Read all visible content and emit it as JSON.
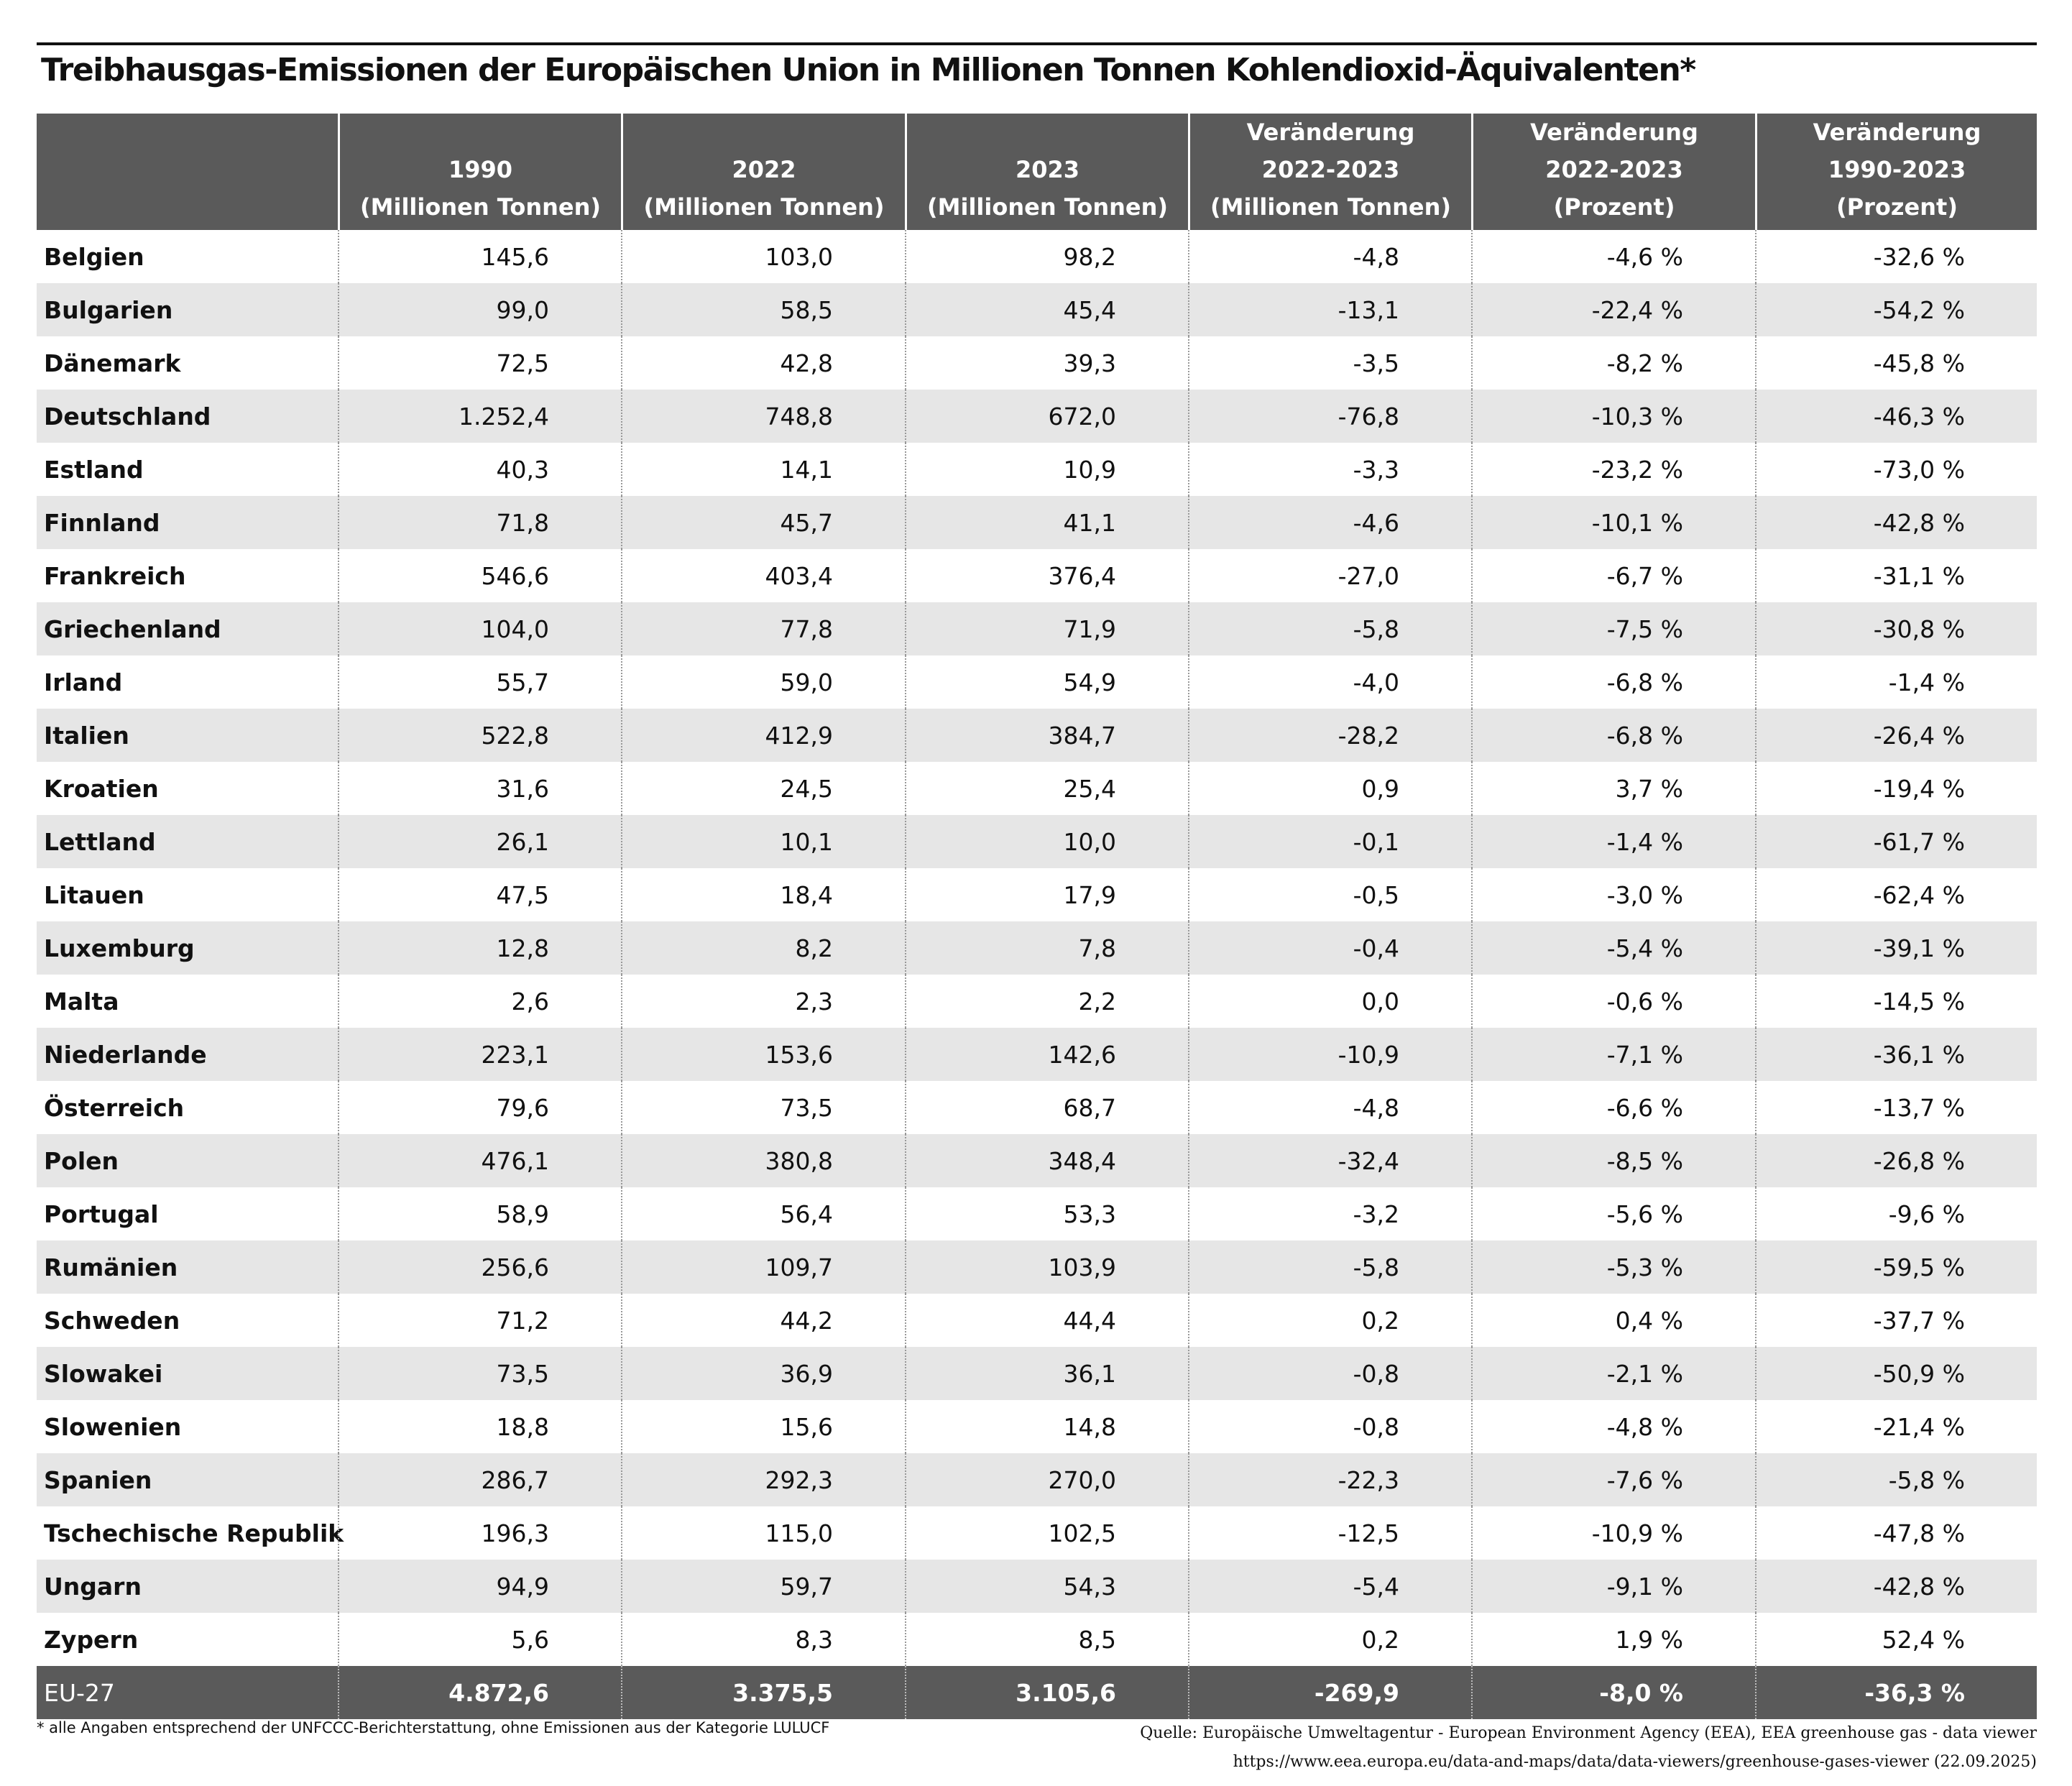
{
  "header": {
    "title": "Treibhausgas-Emissionen der Europäischen Union in Millionen Tonnen Kohlendioxid-Äquivalenten*"
  },
  "table": {
    "columns": [
      [
        "1990",
        "(Millionen Tonnen)"
      ],
      [
        "2022",
        "(Millionen Tonnen)"
      ],
      [
        "2023",
        "(Millionen Tonnen)"
      ],
      [
        "Veränderung",
        "2022-2023",
        "(Millionen Tonnen)"
      ],
      [
        "Veränderung",
        "2022-2023",
        "(Prozent)"
      ],
      [
        "Veränderung",
        "1990-2023",
        "(Prozent)"
      ]
    ],
    "rows": [
      [
        "Belgien",
        "145,6",
        "103,0",
        "98,2",
        "-4,8",
        "-4,6 %",
        "-32,6 %"
      ],
      [
        "Bulgarien",
        "99,0",
        "58,5",
        "45,4",
        "-13,1",
        "-22,4 %",
        "-54,2 %"
      ],
      [
        "Dänemark",
        "72,5",
        "42,8",
        "39,3",
        "-3,5",
        "-8,2 %",
        "-45,8 %"
      ],
      [
        "Deutschland",
        "1.252,4",
        "748,8",
        "672,0",
        "-76,8",
        "-10,3 %",
        "-46,3 %"
      ],
      [
        "Estland",
        "40,3",
        "14,1",
        "10,9",
        "-3,3",
        "-23,2 %",
        "-73,0 %"
      ],
      [
        "Finnland",
        "71,8",
        "45,7",
        "41,1",
        "-4,6",
        "-10,1 %",
        "-42,8 %"
      ],
      [
        "Frankreich",
        "546,6",
        "403,4",
        "376,4",
        "-27,0",
        "-6,7 %",
        "-31,1 %"
      ],
      [
        "Griechenland",
        "104,0",
        "77,8",
        "71,9",
        "-5,8",
        "-7,5 %",
        "-30,8 %"
      ],
      [
        "Irland",
        "55,7",
        "59,0",
        "54,9",
        "-4,0",
        "-6,8 %",
        "-1,4 %"
      ],
      [
        "Italien",
        "522,8",
        "412,9",
        "384,7",
        "-28,2",
        "-6,8 %",
        "-26,4 %"
      ],
      [
        "Kroatien",
        "31,6",
        "24,5",
        "25,4",
        "0,9",
        "3,7 %",
        "-19,4 %"
      ],
      [
        "Lettland",
        "26,1",
        "10,1",
        "10,0",
        "-0,1",
        "-1,4 %",
        "-61,7 %"
      ],
      [
        "Litauen",
        "47,5",
        "18,4",
        "17,9",
        "-0,5",
        "-3,0 %",
        "-62,4 %"
      ],
      [
        "Luxemburg",
        "12,8",
        "8,2",
        "7,8",
        "-0,4",
        "-5,4 %",
        "-39,1 %"
      ],
      [
        "Malta",
        "2,6",
        "2,3",
        "2,2",
        "0,0",
        "-0,6 %",
        "-14,5 %"
      ],
      [
        "Niederlande",
        "223,1",
        "153,6",
        "142,6",
        "-10,9",
        "-7,1 %",
        "-36,1 %"
      ],
      [
        "Österreich",
        "79,6",
        "73,5",
        "68,7",
        "-4,8",
        "-6,6 %",
        "-13,7 %"
      ],
      [
        "Polen",
        "476,1",
        "380,8",
        "348,4",
        "-32,4",
        "-8,5 %",
        "-26,8 %"
      ],
      [
        "Portugal",
        "58,9",
        "56,4",
        "53,3",
        "-3,2",
        "-5,6 %",
        "-9,6 %"
      ],
      [
        "Rumänien",
        "256,6",
        "109,7",
        "103,9",
        "-5,8",
        "-5,3 %",
        "-59,5 %"
      ],
      [
        "Schweden",
        "71,2",
        "44,2",
        "44,4",
        "0,2",
        "0,4 %",
        "-37,7 %"
      ],
      [
        "Slowakei",
        "73,5",
        "36,9",
        "36,1",
        "-0,8",
        "-2,1 %",
        "-50,9 %"
      ],
      [
        "Slowenien",
        "18,8",
        "15,6",
        "14,8",
        "-0,8",
        "-4,8 %",
        "-21,4 %"
      ],
      [
        "Spanien",
        "286,7",
        "292,3",
        "270,0",
        "-22,3",
        "-7,6 %",
        "-5,8 %"
      ],
      [
        "Tschechische Republik",
        "196,3",
        "115,0",
        "102,5",
        "-12,5",
        "-10,9 %",
        "-47,8 %"
      ],
      [
        "Ungarn",
        "94,9",
        "59,7",
        "54,3",
        "-5,4",
        "-9,1 %",
        "-42,8 %"
      ],
      [
        "Zypern",
        "5,6",
        "8,3",
        "8,5",
        "0,2",
        "1,9 %",
        "52,4 %"
      ]
    ],
    "total": [
      "EU-27",
      "4.872,6",
      "3.375,5",
      "3.105,6",
      "-269,9",
      "-8,0 %",
      "-36,3 %"
    ]
  },
  "footer": {
    "note": "* alle Angaben entsprechend der UNFCCC-Berichterstattung, ohne Emissionen aus der Kategorie LULUCF",
    "source": [
      "Quelle: Europäische Umweltagentur - European Environment Agency (EEA), EEA greenhouse gas - data viewer",
      "https://www.eea.europa.eu/data-and-maps/data/data-viewers/greenhouse-gases-viewer (22.09.2025)"
    ]
  }
}
